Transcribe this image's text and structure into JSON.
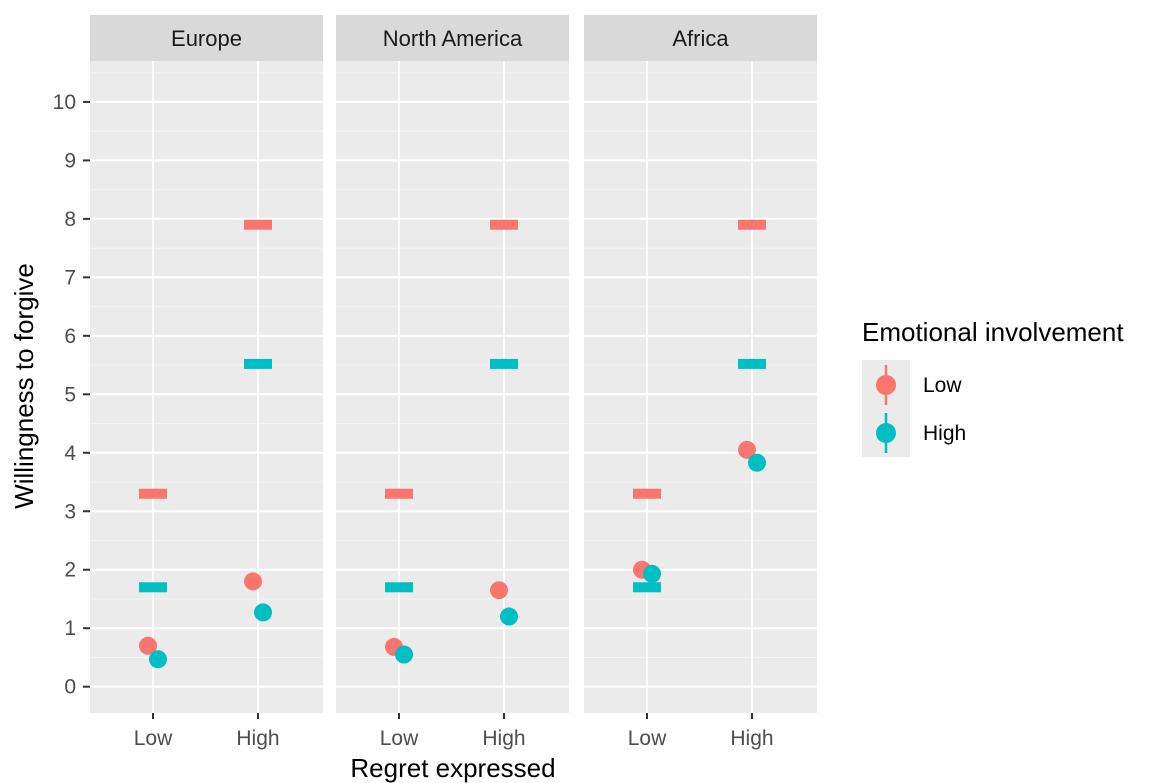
{
  "chart_data": {
    "type": "scatter",
    "facet_by": "region",
    "facets": [
      "Europe",
      "North America",
      "Africa"
    ],
    "x_categories": [
      "Low",
      "High"
    ],
    "xlabel": "Regret expressed",
    "ylabel": "Willingness to forgive",
    "ylim": [
      -0.45,
      10.7
    ],
    "yticks": [
      0,
      1,
      2,
      3,
      4,
      5,
      6,
      7,
      8,
      9,
      10
    ],
    "grid": true,
    "legend": {
      "title": "Emotional involvement",
      "position": "right",
      "entries": [
        {
          "label": "Low",
          "color": "#F8766D"
        },
        {
          "label": "High",
          "color": "#00BFC4"
        }
      ]
    },
    "series": [
      {
        "key": "low",
        "color": "#F8766D",
        "points": {
          "Europe": {
            "Low": 0.7,
            "High": 1.8
          },
          "North America": {
            "Low": 0.68,
            "High": 1.65
          },
          "Africa": {
            "Low": 2.0,
            "High": 4.05
          }
        },
        "reference": {
          "Low": 3.3,
          "High": 7.9
        }
      },
      {
        "key": "high",
        "color": "#00BFC4",
        "points": {
          "Europe": {
            "Low": 0.47,
            "High": 1.27
          },
          "North America": {
            "Low": 0.55,
            "High": 1.2
          },
          "Africa": {
            "Low": 1.93,
            "High": 3.83
          }
        },
        "reference": {
          "Low": 1.7,
          "High": 5.52
        }
      }
    ]
  }
}
